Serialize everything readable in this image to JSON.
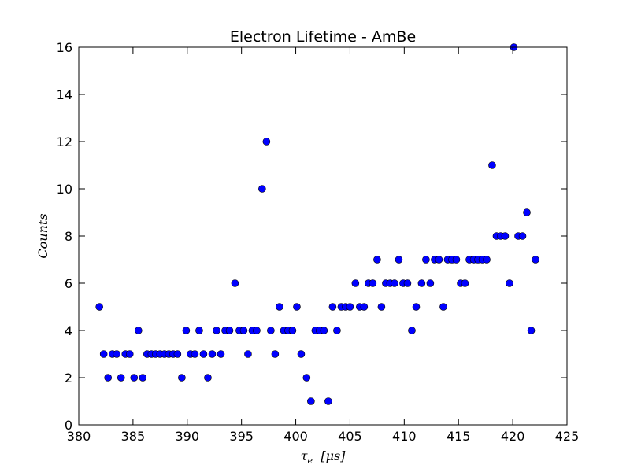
{
  "chart_data": {
    "type": "scatter",
    "title": "Electron Lifetime - AmBe",
    "xlabel": "τ_e⁻ [μs]",
    "ylabel": "Counts",
    "xlim": [
      380,
      425
    ],
    "ylim": [
      0,
      16
    ],
    "xticks": [
      380,
      385,
      390,
      395,
      400,
      405,
      410,
      415,
      420,
      425
    ],
    "yticks": [
      0,
      2,
      4,
      6,
      8,
      10,
      12,
      14,
      16
    ],
    "xtick_labels": [
      "380",
      "385",
      "390",
      "395",
      "400",
      "405",
      "410",
      "415",
      "420",
      "425"
    ],
    "ytick_labels": [
      "0",
      "2",
      "4",
      "6",
      "8",
      "10",
      "12",
      "14",
      "16"
    ],
    "grid": false,
    "marker_color": "#0000ff",
    "points": [
      {
        "x": 381.9,
        "y": 5
      },
      {
        "x": 382.3,
        "y": 3
      },
      {
        "x": 382.7,
        "y": 2
      },
      {
        "x": 383.1,
        "y": 3
      },
      {
        "x": 383.5,
        "y": 3
      },
      {
        "x": 383.9,
        "y": 2
      },
      {
        "x": 384.3,
        "y": 3
      },
      {
        "x": 384.7,
        "y": 3
      },
      {
        "x": 385.1,
        "y": 2
      },
      {
        "x": 385.5,
        "y": 4
      },
      {
        "x": 385.9,
        "y": 2
      },
      {
        "x": 386.3,
        "y": 3
      },
      {
        "x": 386.7,
        "y": 3
      },
      {
        "x": 387.1,
        "y": 3
      },
      {
        "x": 387.5,
        "y": 3
      },
      {
        "x": 387.9,
        "y": 3
      },
      {
        "x": 388.3,
        "y": 3
      },
      {
        "x": 388.7,
        "y": 3
      },
      {
        "x": 389.1,
        "y": 3
      },
      {
        "x": 389.5,
        "y": 2
      },
      {
        "x": 389.9,
        "y": 4
      },
      {
        "x": 390.3,
        "y": 3
      },
      {
        "x": 390.7,
        "y": 3
      },
      {
        "x": 391.1,
        "y": 4
      },
      {
        "x": 391.5,
        "y": 3
      },
      {
        "x": 391.9,
        "y": 2
      },
      {
        "x": 392.3,
        "y": 3
      },
      {
        "x": 392.7,
        "y": 4
      },
      {
        "x": 393.1,
        "y": 3
      },
      {
        "x": 393.5,
        "y": 4
      },
      {
        "x": 393.9,
        "y": 4
      },
      {
        "x": 394.4,
        "y": 6
      },
      {
        "x": 394.8,
        "y": 4
      },
      {
        "x": 395.2,
        "y": 4
      },
      {
        "x": 395.6,
        "y": 3
      },
      {
        "x": 396.0,
        "y": 4
      },
      {
        "x": 396.4,
        "y": 4
      },
      {
        "x": 396.9,
        "y": 10
      },
      {
        "x": 397.3,
        "y": 12
      },
      {
        "x": 397.7,
        "y": 4
      },
      {
        "x": 398.1,
        "y": 3
      },
      {
        "x": 398.5,
        "y": 5
      },
      {
        "x": 398.9,
        "y": 4
      },
      {
        "x": 399.3,
        "y": 4
      },
      {
        "x": 399.7,
        "y": 4
      },
      {
        "x": 400.1,
        "y": 5
      },
      {
        "x": 400.5,
        "y": 3
      },
      {
        "x": 401.0,
        "y": 2
      },
      {
        "x": 401.4,
        "y": 1
      },
      {
        "x": 401.8,
        "y": 4
      },
      {
        "x": 402.2,
        "y": 4
      },
      {
        "x": 402.6,
        "y": 4
      },
      {
        "x": 403.0,
        "y": 1
      },
      {
        "x": 403.4,
        "y": 5
      },
      {
        "x": 403.8,
        "y": 4
      },
      {
        "x": 404.2,
        "y": 5
      },
      {
        "x": 404.6,
        "y": 5
      },
      {
        "x": 405.0,
        "y": 5
      },
      {
        "x": 405.5,
        "y": 6
      },
      {
        "x": 405.9,
        "y": 5
      },
      {
        "x": 406.3,
        "y": 5
      },
      {
        "x": 406.7,
        "y": 6
      },
      {
        "x": 407.1,
        "y": 6
      },
      {
        "x": 407.5,
        "y": 7
      },
      {
        "x": 407.9,
        "y": 5
      },
      {
        "x": 408.3,
        "y": 6
      },
      {
        "x": 408.7,
        "y": 6
      },
      {
        "x": 409.1,
        "y": 6
      },
      {
        "x": 409.5,
        "y": 7
      },
      {
        "x": 409.9,
        "y": 6
      },
      {
        "x": 410.3,
        "y": 6
      },
      {
        "x": 410.7,
        "y": 4
      },
      {
        "x": 411.1,
        "y": 5
      },
      {
        "x": 411.6,
        "y": 6
      },
      {
        "x": 412.0,
        "y": 7
      },
      {
        "x": 412.4,
        "y": 6
      },
      {
        "x": 412.8,
        "y": 7
      },
      {
        "x": 413.2,
        "y": 7
      },
      {
        "x": 413.6,
        "y": 5
      },
      {
        "x": 414.0,
        "y": 7
      },
      {
        "x": 414.4,
        "y": 7
      },
      {
        "x": 414.8,
        "y": 7
      },
      {
        "x": 415.2,
        "y": 6
      },
      {
        "x": 415.6,
        "y": 6
      },
      {
        "x": 416.0,
        "y": 7
      },
      {
        "x": 416.4,
        "y": 7
      },
      {
        "x": 416.8,
        "y": 7
      },
      {
        "x": 417.2,
        "y": 7
      },
      {
        "x": 417.6,
        "y": 7
      },
      {
        "x": 418.1,
        "y": 11
      },
      {
        "x": 418.5,
        "y": 8
      },
      {
        "x": 418.9,
        "y": 8
      },
      {
        "x": 419.3,
        "y": 8
      },
      {
        "x": 419.7,
        "y": 6
      },
      {
        "x": 420.1,
        "y": 16
      },
      {
        "x": 420.5,
        "y": 8
      },
      {
        "x": 420.9,
        "y": 8
      },
      {
        "x": 421.3,
        "y": 9
      },
      {
        "x": 421.7,
        "y": 4
      },
      {
        "x": 422.1,
        "y": 7
      }
    ]
  }
}
